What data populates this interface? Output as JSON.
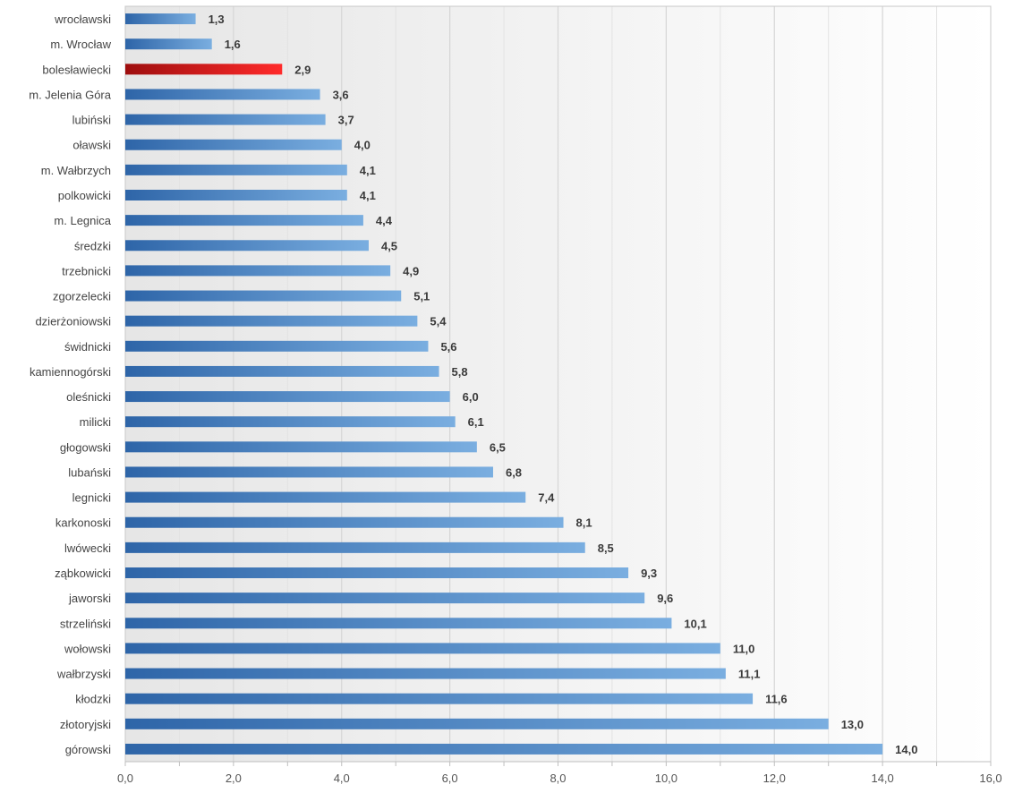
{
  "chart_data": {
    "type": "bar",
    "orientation": "horizontal",
    "categories": [
      "wrocławski",
      "m. Wrocław",
      "bolesławiecki",
      "m. Jelenia Góra",
      "lubiński",
      "oławski",
      "m. Wałbrzych",
      "polkowicki",
      "m. Legnica",
      "średzki",
      "trzebnicki",
      "zgorzelecki",
      "dzierżoniowski",
      "świdnicki",
      "kamiennogórski",
      "oleśnicki",
      "milicki",
      "głogowski",
      "lubański",
      "legnicki",
      "karkonoski",
      "lwówecki",
      "ząbkowicki",
      "jaworski",
      "strzeliński",
      "wołowski",
      "wałbrzyski",
      "kłodzki",
      "złotoryjski",
      "górowski"
    ],
    "values": [
      1.3,
      1.6,
      2.9,
      3.6,
      3.7,
      4.0,
      4.1,
      4.1,
      4.4,
      4.5,
      4.9,
      5.1,
      5.4,
      5.6,
      5.8,
      6.0,
      6.1,
      6.5,
      6.8,
      7.4,
      8.1,
      8.5,
      9.3,
      9.6,
      10.1,
      11.0,
      11.1,
      11.6,
      13.0,
      14.0
    ],
    "value_labels": [
      "1,3",
      "1,6",
      "2,9",
      "3,6",
      "3,7",
      "4,0",
      "4,1",
      "4,1",
      "4,4",
      "4,5",
      "4,9",
      "5,1",
      "5,4",
      "5,6",
      "5,8",
      "6,0",
      "6,1",
      "6,5",
      "6,8",
      "7,4",
      "8,1",
      "8,5",
      "9,3",
      "9,6",
      "10,1",
      "11,0",
      "11,1",
      "11,6",
      "13,0",
      "14,0"
    ],
    "highlight_category": "bolesławiecki",
    "xlim": [
      0,
      16
    ],
    "x_ticks": [
      0,
      2,
      4,
      6,
      8,
      10,
      12,
      14,
      16
    ],
    "x_tick_labels": [
      "0,0",
      "2,0",
      "4,0",
      "6,0",
      "8,0",
      "10,0",
      "12,0",
      "14,0",
      "16,0"
    ],
    "title": "",
    "xlabel": "",
    "ylabel": "",
    "grid": true,
    "legend": "none",
    "colors": {
      "bar_dark": "#2e65a8",
      "bar_light": "#7aaee0",
      "highlight_dark": "#9e0e0e",
      "highlight_light": "#ff2a2a",
      "grid": "#d9d9d9",
      "frame": "#c8c8c8",
      "background_left": "#e8e8e8",
      "background_right": "#ffffff"
    }
  }
}
